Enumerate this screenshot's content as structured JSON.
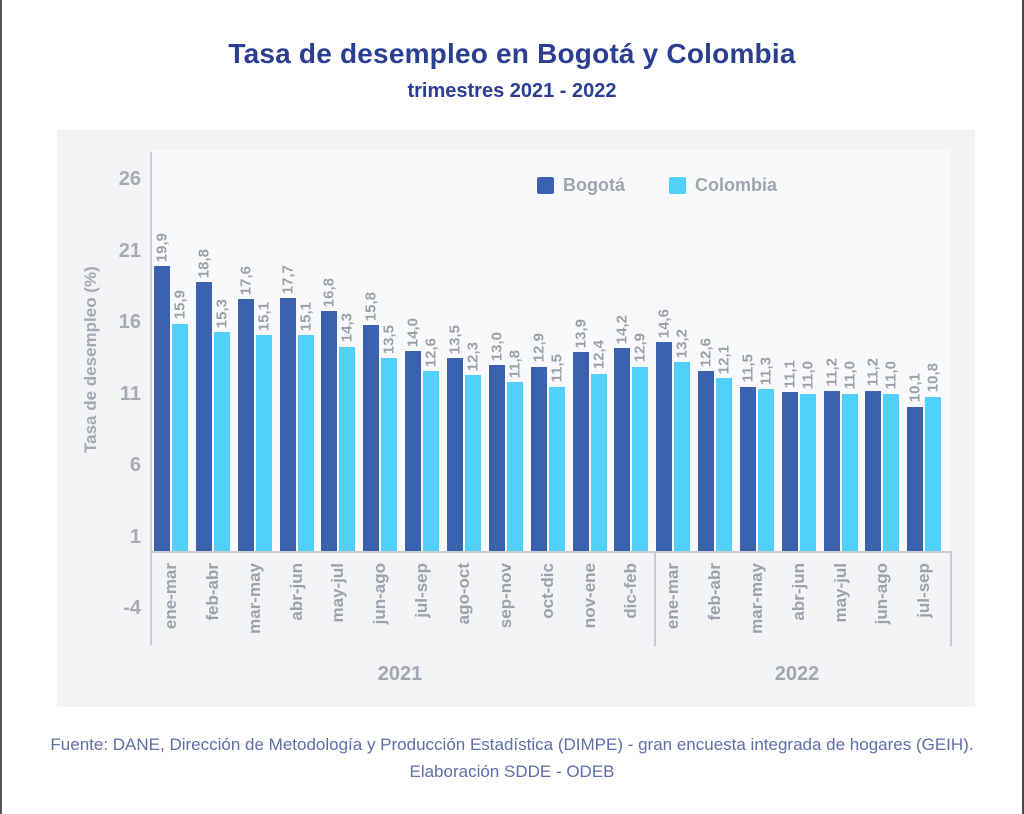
{
  "header": {
    "title": "Tasa de desempleo en Bogotá y Colombia",
    "subtitle": "trimestres 2021 - 2022"
  },
  "chart_data": {
    "type": "bar",
    "title": "Tasa de desempleo en Bogotá y Colombia",
    "subtitle": "trimestres 2021 - 2022",
    "ylabel": "Tasa de desempleo (%)",
    "yticks": [
      26,
      21,
      16,
      11,
      6,
      1,
      -4
    ],
    "ylim": [
      -4,
      26
    ],
    "grid": false,
    "legend_position": "top",
    "decimal_separator": ",",
    "categories": [
      "ene-mar",
      "feb-abr",
      "mar-may",
      "abr-jun",
      "may-jul",
      "jun-ago",
      "jul-sep",
      "ago-oct",
      "sep-nov",
      "oct-dic",
      "nov-ene",
      "dic-feb",
      "ene-mar",
      "feb-abr",
      "mar-may",
      "abr-jun",
      "may-jul",
      "jun-ago",
      "jul-sep"
    ],
    "groups": [
      {
        "label": "2021",
        "count": 12
      },
      {
        "label": "2022",
        "count": 7
      }
    ],
    "group_labels": [
      "2021",
      "2022"
    ],
    "series": [
      {
        "name": "Bogotá",
        "color": "#3a62ae",
        "values": [
          19.9,
          18.8,
          17.6,
          17.7,
          16.8,
          15.8,
          14.0,
          13.5,
          13.0,
          12.9,
          13.9,
          14.2,
          14.6,
          12.6,
          11.5,
          11.1,
          11.2,
          11.2,
          10.1
        ]
      },
      {
        "name": "Colombia",
        "color": "#50d0fa",
        "values": [
          15.9,
          15.3,
          15.1,
          15.1,
          14.3,
          13.5,
          12.6,
          12.3,
          11.8,
          11.5,
          12.4,
          12.9,
          13.2,
          12.1,
          11.3,
          11.0,
          11.0,
          11.0,
          10.8
        ]
      }
    ]
  },
  "footer": {
    "line1": "Fuente: DANE, Dirección de Metodología y Producción Estadística (DIMPE) - gran encuesta integrada de hogares (GEIH).",
    "line2": "Elaboración SDDE - ODEB"
  }
}
